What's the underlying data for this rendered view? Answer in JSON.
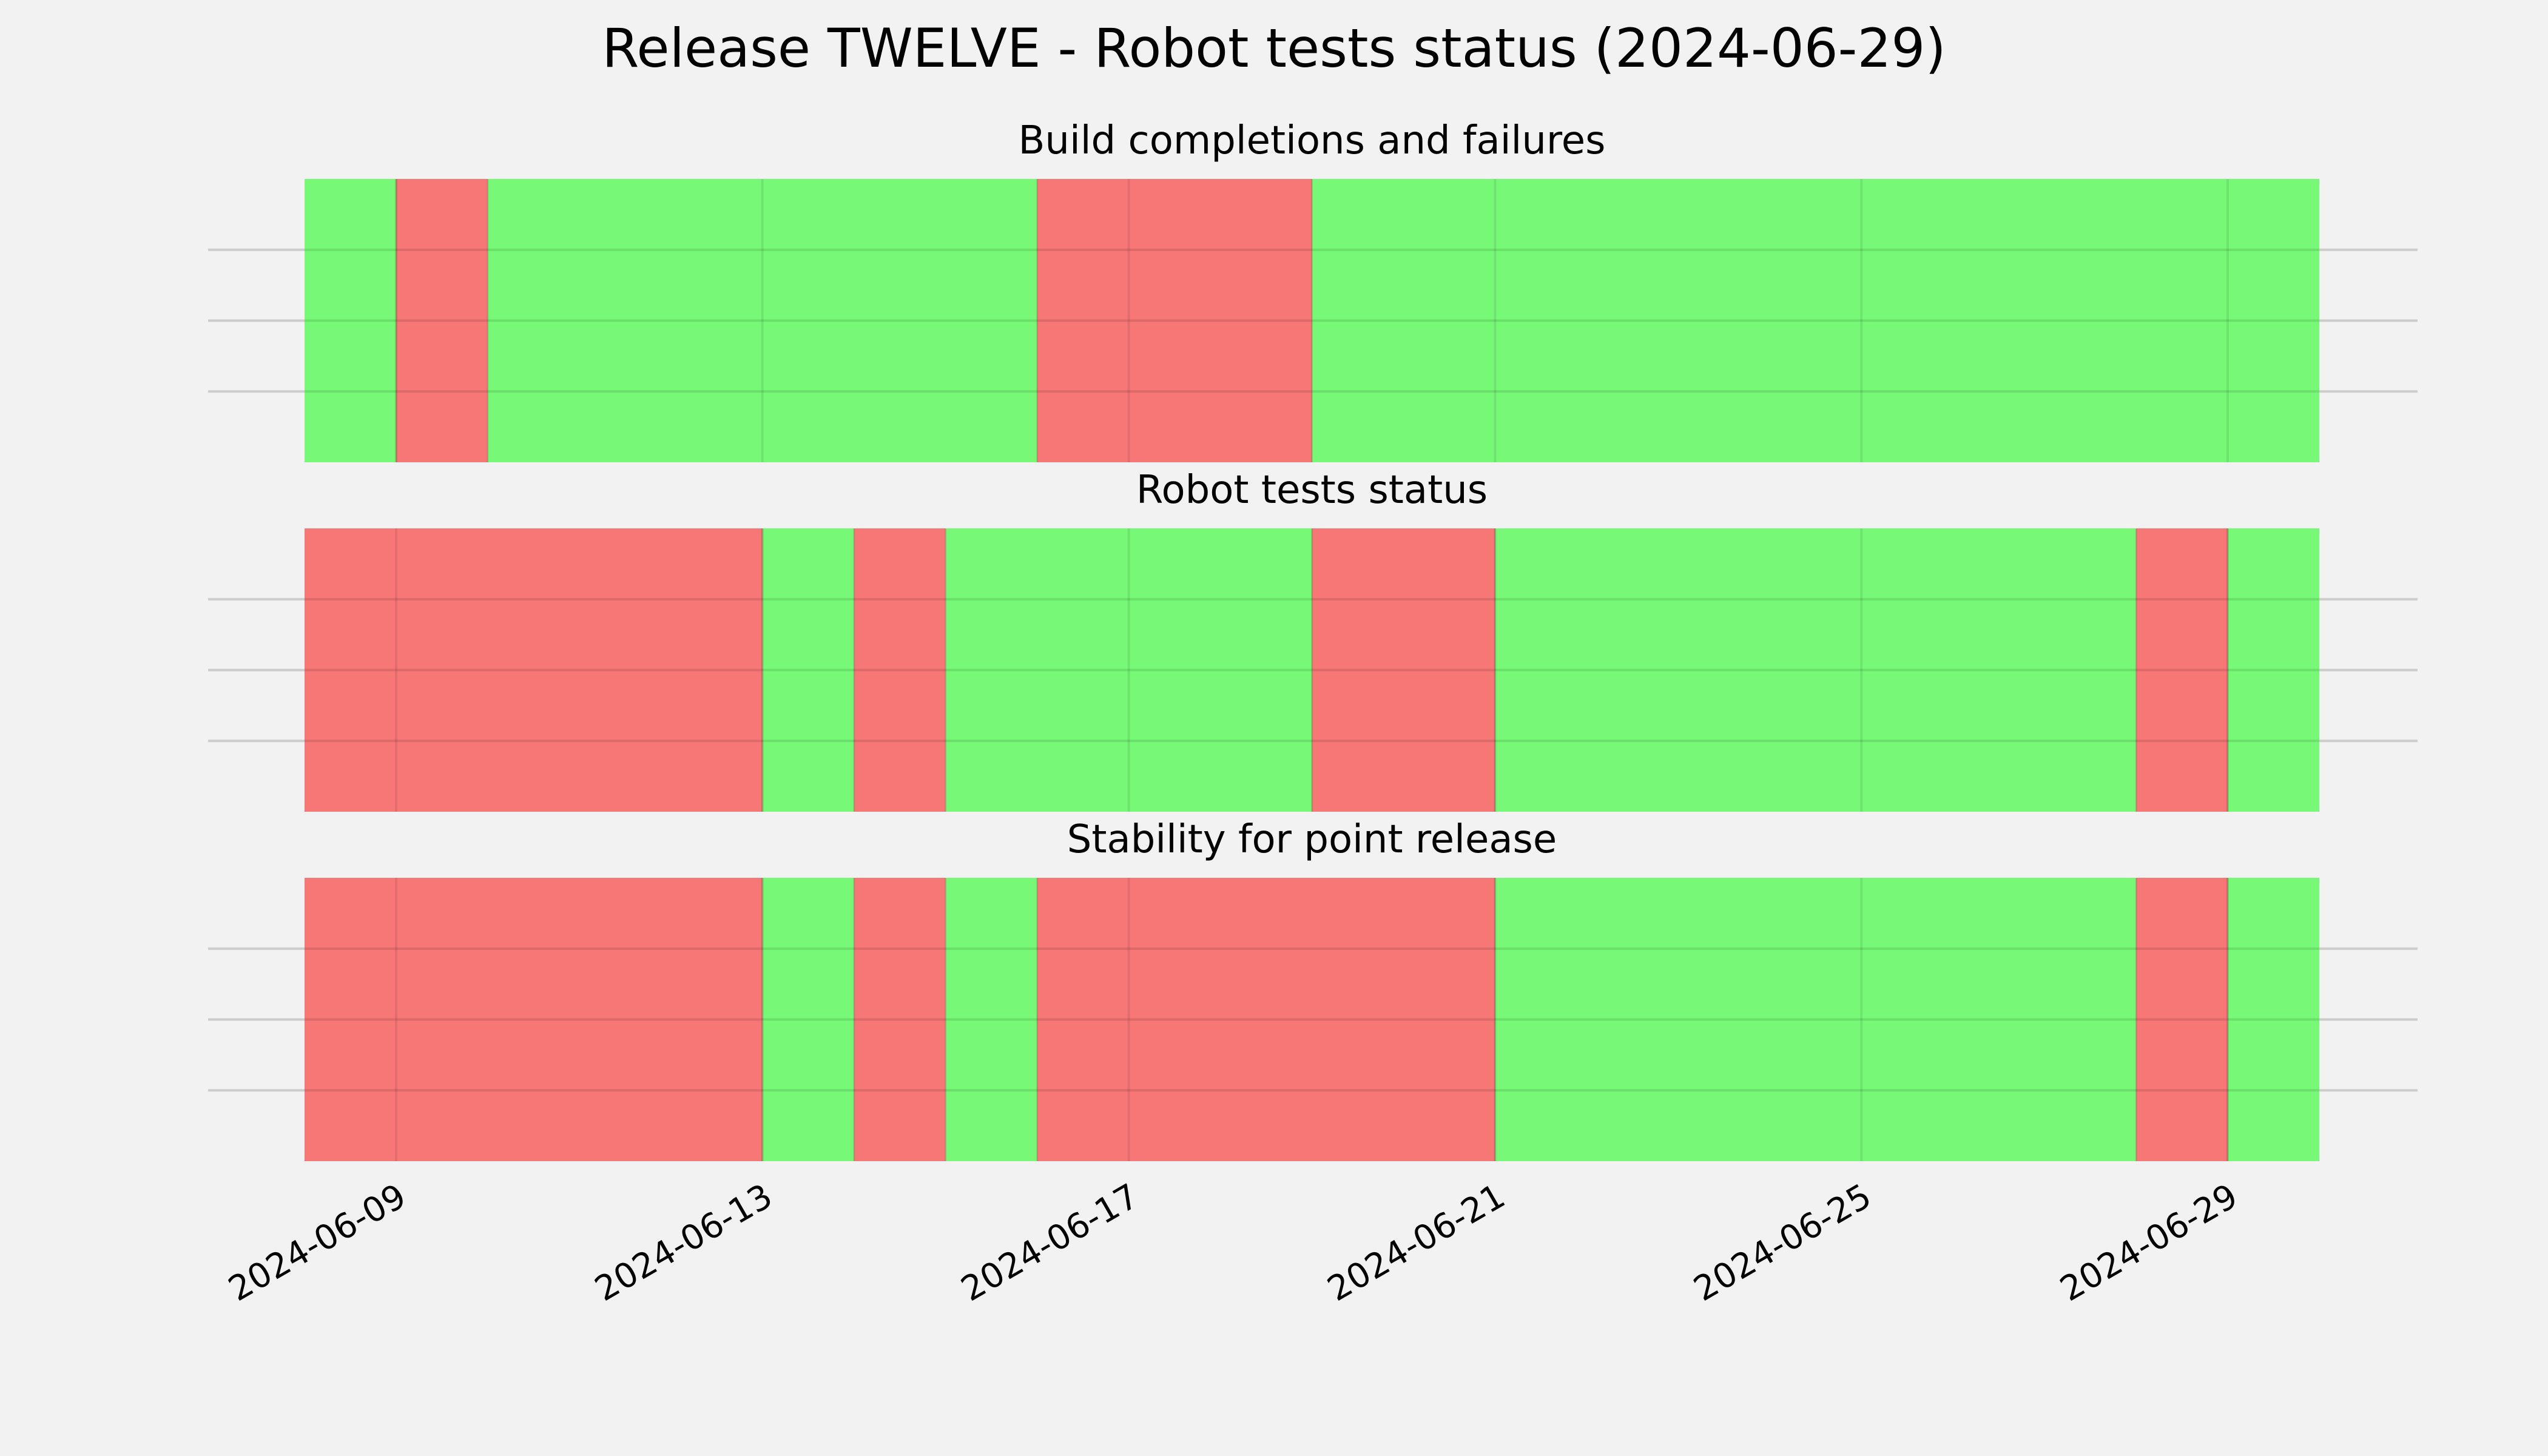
{
  "chart_data": {
    "type": "timeline",
    "title": "Release TWELVE - Robot tests status (2024-06-29)",
    "x_ticks": [
      "2024-06-09",
      "2024-06-13",
      "2024-06-17",
      "2024-06-21",
      "2024-06-25",
      "2024-06-29"
    ],
    "xlim": [
      "2024-06-08",
      "2024-06-30"
    ],
    "xaxis_type": "date",
    "grid": true,
    "colors": {
      "pass": "#77f977",
      "fail": "#f77777"
    },
    "panels": [
      {
        "title": "Build completions and failures",
        "segments": [
          {
            "start": "2024-06-08",
            "end": "2024-06-09",
            "status": "pass"
          },
          {
            "start": "2024-06-09",
            "end": "2024-06-10",
            "status": "fail"
          },
          {
            "start": "2024-06-10",
            "end": "2024-06-16",
            "status": "pass"
          },
          {
            "start": "2024-06-16",
            "end": "2024-06-19",
            "status": "fail"
          },
          {
            "start": "2024-06-19",
            "end": "2024-06-30",
            "status": "pass"
          }
        ]
      },
      {
        "title": "Robot tests status",
        "segments": [
          {
            "start": "2024-06-08",
            "end": "2024-06-13",
            "status": "fail"
          },
          {
            "start": "2024-06-13",
            "end": "2024-06-14",
            "status": "pass"
          },
          {
            "start": "2024-06-14",
            "end": "2024-06-15",
            "status": "fail"
          },
          {
            "start": "2024-06-15",
            "end": "2024-06-19",
            "status": "pass"
          },
          {
            "start": "2024-06-19",
            "end": "2024-06-21",
            "status": "fail"
          },
          {
            "start": "2024-06-21",
            "end": "2024-06-28",
            "status": "pass"
          },
          {
            "start": "2024-06-28",
            "end": "2024-06-29",
            "status": "fail"
          },
          {
            "start": "2024-06-29",
            "end": "2024-06-30",
            "status": "pass"
          }
        ]
      },
      {
        "title": "Stability for point release",
        "segments": [
          {
            "start": "2024-06-08",
            "end": "2024-06-13",
            "status": "fail"
          },
          {
            "start": "2024-06-13",
            "end": "2024-06-14",
            "status": "pass"
          },
          {
            "start": "2024-06-14",
            "end": "2024-06-15",
            "status": "fail"
          },
          {
            "start": "2024-06-15",
            "end": "2024-06-16",
            "status": "pass"
          },
          {
            "start": "2024-06-16",
            "end": "2024-06-21",
            "status": "fail"
          },
          {
            "start": "2024-06-21",
            "end": "2024-06-28",
            "status": "pass"
          },
          {
            "start": "2024-06-28",
            "end": "2024-06-29",
            "status": "fail"
          },
          {
            "start": "2024-06-29",
            "end": "2024-06-30",
            "status": "pass"
          }
        ]
      }
    ]
  }
}
